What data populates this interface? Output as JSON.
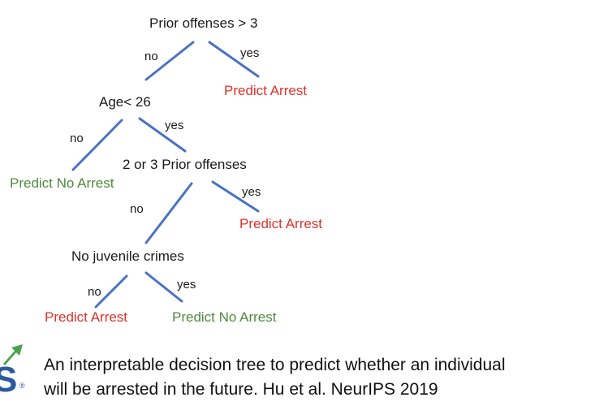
{
  "colors": {
    "edge": "#4a72c4",
    "arrest": "#e0312a",
    "no_arrest": "#4f8a3c",
    "logo_blue": "#2c5aa0",
    "logo_green": "#4aa34a"
  },
  "tree": {
    "root": {
      "label": "Prior offenses > 3",
      "no": "no",
      "yes": "yes",
      "yes_leaf": "Predict Arrest"
    },
    "node_age": {
      "label": "Age< 26",
      "no": "no",
      "yes": "yes",
      "no_leaf": "Predict No Arrest"
    },
    "node_prior": {
      "label": "2 or 3 Prior offenses",
      "no": "no",
      "yes": "yes",
      "yes_leaf": "Predict Arrest"
    },
    "node_juvenile": {
      "label": "No juvenile crimes",
      "no": "no",
      "yes": "yes",
      "no_leaf": "Predict Arrest",
      "yes_leaf": "Predict No Arrest"
    }
  },
  "caption": {
    "line1": "An interpretable decision tree to predict whether an individual",
    "line2": "will be arrested in the future. Hu et al. NeurIPS 2019"
  },
  "logo": {
    "letter": "S",
    "mark": "®"
  }
}
